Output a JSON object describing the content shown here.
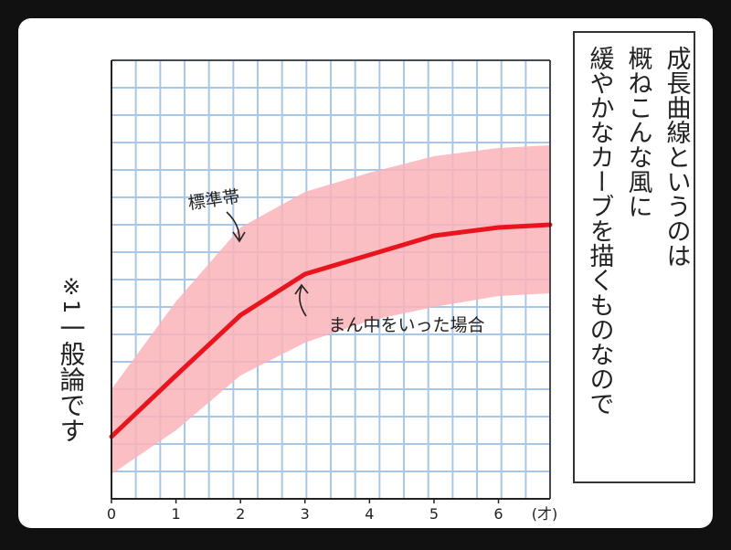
{
  "chart_data": {
    "type": "band-line",
    "x": [
      0,
      1,
      2,
      3,
      4,
      5,
      6,
      6.8
    ],
    "xlim": [
      0,
      6.8
    ],
    "xticks": [
      0,
      1,
      2,
      3,
      4,
      5,
      6
    ],
    "x_unit": "(才)",
    "ylim": [
      0,
      16
    ],
    "grid": true,
    "series": [
      {
        "name": "標準帯",
        "color": "#f9b3b8",
        "upper": [
          4.0,
          7.2,
          9.9,
          11.2,
          11.9,
          12.5,
          12.8,
          12.9
        ],
        "lower": [
          0.9,
          2.5,
          4.5,
          5.7,
          6.5,
          7.0,
          7.4,
          7.5
        ]
      },
      {
        "name": "まん中をいった場合",
        "color": "#e8141e",
        "values": [
          2.27,
          4.5,
          6.7,
          8.2,
          8.9,
          9.6,
          9.9,
          10.0
        ]
      }
    ],
    "note": [
      "※1",
      "一般論です"
    ],
    "caption": [
      "成長曲線というのは",
      "概ねこんな風に",
      "緩やかなカーブを描くものなので"
    ]
  }
}
